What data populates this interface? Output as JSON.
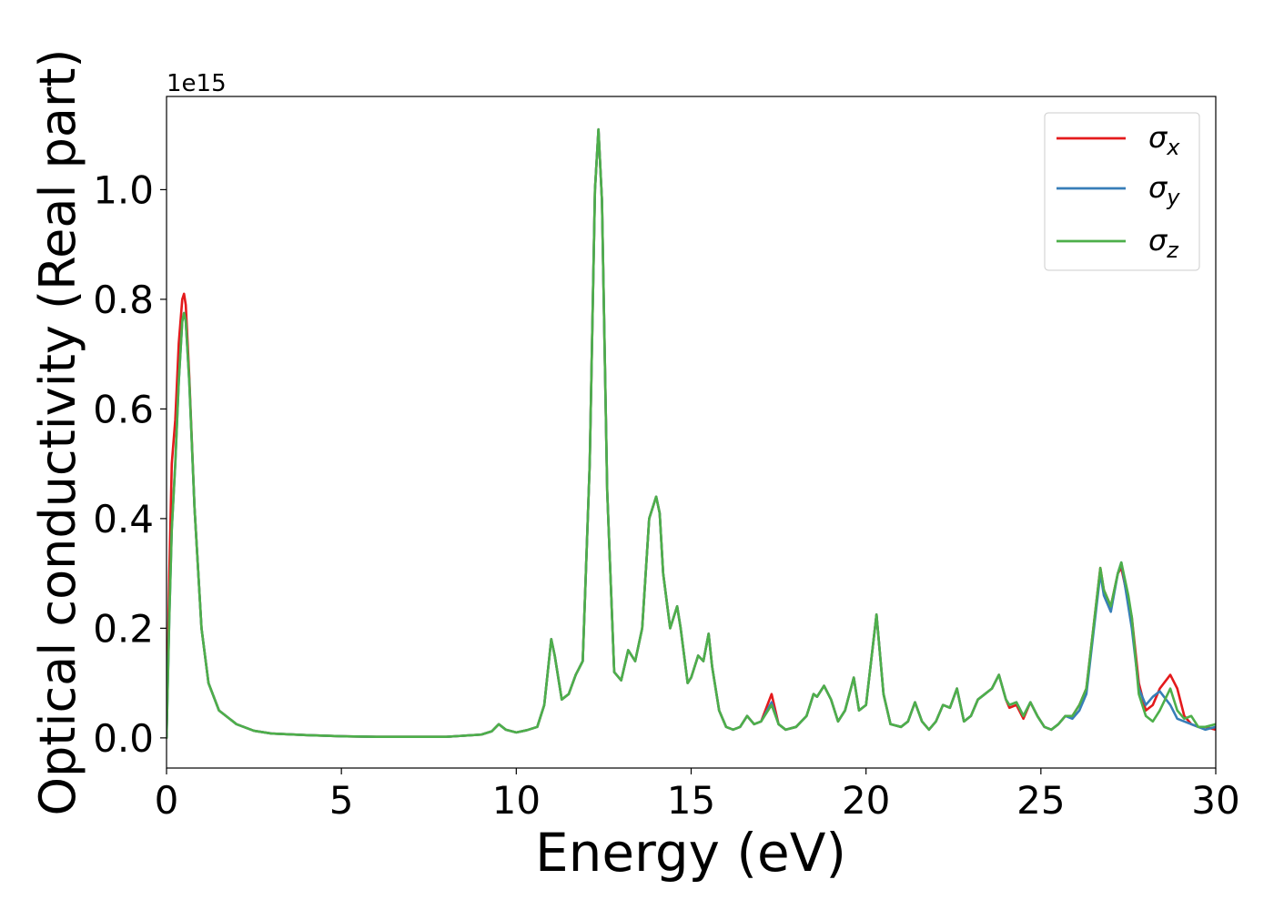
{
  "chart_data": {
    "type": "line",
    "title": "",
    "xlabel": "Energy (eV)",
    "ylabel": "Optical conductivity (Real part)",
    "xlim": [
      0,
      30
    ],
    "ylim": [
      -0.055,
      1.17
    ],
    "y_scale_multiplier": "1e15",
    "x_ticks": [
      0,
      5,
      10,
      15,
      20,
      25,
      30
    ],
    "y_ticks": [
      0.0,
      0.2,
      0.4,
      0.6,
      0.8,
      1.0
    ],
    "x_tick_labels": [
      "0",
      "5",
      "10",
      "15",
      "20",
      "25",
      "30"
    ],
    "y_tick_labels": [
      "0.0",
      "0.2",
      "0.4",
      "0.6",
      "0.8",
      "1.0"
    ],
    "grid": false,
    "legend": "top-right",
    "series": [
      {
        "name": "σ",
        "subscript": "x",
        "color": "#e41a1c",
        "x": [
          0.0,
          0.08,
          0.15,
          0.25,
          0.35,
          0.45,
          0.5,
          0.55,
          0.65,
          0.8,
          1.0,
          1.2,
          1.5,
          2.0,
          2.5,
          3.0,
          4.0,
          5.0,
          6.0,
          7.0,
          8.0,
          8.5,
          9.0,
          9.3,
          9.5,
          9.7,
          10.0,
          10.3,
          10.6,
          10.8,
          11.0,
          11.1,
          11.3,
          11.5,
          11.7,
          11.9,
          12.1,
          12.25,
          12.35,
          12.45,
          12.6,
          12.8,
          13.0,
          13.2,
          13.4,
          13.6,
          13.8,
          14.0,
          14.1,
          14.2,
          14.4,
          14.6,
          14.7,
          14.9,
          15.0,
          15.2,
          15.35,
          15.5,
          15.6,
          15.8,
          16.0,
          16.2,
          16.4,
          16.6,
          16.8,
          17.0,
          17.3,
          17.5,
          17.7,
          18.0,
          18.3,
          18.5,
          18.6,
          18.8,
          19.0,
          19.2,
          19.4,
          19.65,
          19.8,
          20.0,
          20.3,
          20.5,
          20.7,
          21.0,
          21.2,
          21.4,
          21.6,
          21.8,
          22.0,
          22.2,
          22.4,
          22.6,
          22.8,
          23.0,
          23.2,
          23.4,
          23.6,
          23.8,
          24.0,
          24.1,
          24.3,
          24.5,
          24.7,
          24.9,
          25.1,
          25.3,
          25.5,
          25.7,
          25.9,
          26.1,
          26.3,
          26.5,
          26.7,
          26.8,
          27.0,
          27.2,
          27.3,
          27.5,
          27.6,
          27.8,
          28.0,
          28.2,
          28.4,
          28.7,
          28.9,
          29.1,
          29.3,
          29.5,
          29.7,
          30.0
        ],
        "values": [
          0.0,
          0.3,
          0.5,
          0.58,
          0.72,
          0.8,
          0.81,
          0.79,
          0.66,
          0.42,
          0.2,
          0.1,
          0.05,
          0.025,
          0.013,
          0.008,
          0.005,
          0.003,
          0.002,
          0.002,
          0.002,
          0.004,
          0.006,
          0.012,
          0.025,
          0.015,
          0.01,
          0.014,
          0.02,
          0.06,
          0.18,
          0.15,
          0.07,
          0.08,
          0.115,
          0.14,
          0.5,
          1.0,
          1.11,
          0.98,
          0.45,
          0.12,
          0.105,
          0.16,
          0.14,
          0.2,
          0.4,
          0.44,
          0.41,
          0.3,
          0.2,
          0.24,
          0.2,
          0.1,
          0.11,
          0.15,
          0.14,
          0.19,
          0.13,
          0.05,
          0.02,
          0.015,
          0.02,
          0.04,
          0.025,
          0.03,
          0.08,
          0.025,
          0.015,
          0.02,
          0.04,
          0.08,
          0.075,
          0.095,
          0.07,
          0.03,
          0.05,
          0.11,
          0.05,
          0.06,
          0.225,
          0.08,
          0.025,
          0.02,
          0.03,
          0.065,
          0.03,
          0.015,
          0.03,
          0.06,
          0.055,
          0.09,
          0.03,
          0.04,
          0.07,
          0.08,
          0.09,
          0.115,
          0.07,
          0.055,
          0.06,
          0.035,
          0.065,
          0.04,
          0.02,
          0.015,
          0.025,
          0.04,
          0.04,
          0.06,
          0.09,
          0.2,
          0.31,
          0.27,
          0.24,
          0.3,
          0.31,
          0.25,
          0.22,
          0.1,
          0.05,
          0.06,
          0.09,
          0.115,
          0.09,
          0.04,
          0.025,
          0.02,
          0.02,
          0.015
        ]
      },
      {
        "name": "σ",
        "subscript": "y",
        "color": "#377eb8",
        "x": [
          0.0,
          0.08,
          0.15,
          0.25,
          0.35,
          0.45,
          0.5,
          0.55,
          0.65,
          0.8,
          1.0,
          1.2,
          1.5,
          2.0,
          2.5,
          3.0,
          4.0,
          5.0,
          6.0,
          7.0,
          8.0,
          8.5,
          9.0,
          9.3,
          9.5,
          9.7,
          10.0,
          10.3,
          10.6,
          10.8,
          11.0,
          11.1,
          11.3,
          11.5,
          11.7,
          11.9,
          12.1,
          12.25,
          12.35,
          12.45,
          12.6,
          12.8,
          13.0,
          13.2,
          13.4,
          13.6,
          13.8,
          14.0,
          14.1,
          14.2,
          14.4,
          14.6,
          14.7,
          14.9,
          15.0,
          15.2,
          15.35,
          15.5,
          15.6,
          15.8,
          16.0,
          16.2,
          16.4,
          16.6,
          16.8,
          17.0,
          17.3,
          17.5,
          17.7,
          18.0,
          18.3,
          18.5,
          18.6,
          18.8,
          19.0,
          19.2,
          19.4,
          19.65,
          19.8,
          20.0,
          20.3,
          20.5,
          20.7,
          21.0,
          21.2,
          21.4,
          21.6,
          21.8,
          22.0,
          22.2,
          22.4,
          22.6,
          22.8,
          23.0,
          23.2,
          23.4,
          23.6,
          23.8,
          24.0,
          24.1,
          24.3,
          24.5,
          24.7,
          24.9,
          25.1,
          25.3,
          25.5,
          25.7,
          25.9,
          26.1,
          26.3,
          26.5,
          26.7,
          26.8,
          27.0,
          27.2,
          27.3,
          27.5,
          27.6,
          27.8,
          28.0,
          28.2,
          28.4,
          28.7,
          28.9,
          29.1,
          29.3,
          29.5,
          29.7,
          30.0
        ],
        "values": [
          0.0,
          0.22,
          0.38,
          0.5,
          0.65,
          0.76,
          0.775,
          0.76,
          0.65,
          0.42,
          0.2,
          0.1,
          0.05,
          0.025,
          0.013,
          0.008,
          0.005,
          0.003,
          0.002,
          0.002,
          0.002,
          0.004,
          0.006,
          0.012,
          0.025,
          0.015,
          0.01,
          0.014,
          0.02,
          0.06,
          0.18,
          0.15,
          0.07,
          0.08,
          0.115,
          0.14,
          0.5,
          1.0,
          1.11,
          0.98,
          0.45,
          0.12,
          0.105,
          0.16,
          0.14,
          0.2,
          0.4,
          0.44,
          0.41,
          0.3,
          0.2,
          0.24,
          0.2,
          0.1,
          0.11,
          0.15,
          0.14,
          0.19,
          0.13,
          0.05,
          0.02,
          0.015,
          0.02,
          0.04,
          0.025,
          0.03,
          0.065,
          0.025,
          0.015,
          0.02,
          0.04,
          0.08,
          0.075,
          0.095,
          0.07,
          0.03,
          0.05,
          0.11,
          0.05,
          0.06,
          0.225,
          0.08,
          0.025,
          0.02,
          0.03,
          0.065,
          0.03,
          0.015,
          0.03,
          0.06,
          0.055,
          0.09,
          0.03,
          0.04,
          0.07,
          0.08,
          0.09,
          0.115,
          0.07,
          0.06,
          0.065,
          0.04,
          0.065,
          0.04,
          0.02,
          0.015,
          0.025,
          0.04,
          0.035,
          0.05,
          0.08,
          0.19,
          0.3,
          0.26,
          0.23,
          0.3,
          0.32,
          0.24,
          0.2,
          0.09,
          0.06,
          0.075,
          0.085,
          0.06,
          0.035,
          0.03,
          0.025,
          0.02,
          0.015,
          0.02
        ]
      },
      {
        "name": "σ",
        "subscript": "z",
        "color": "#4daf4a",
        "x": [
          0.0,
          0.08,
          0.15,
          0.25,
          0.35,
          0.45,
          0.5,
          0.55,
          0.65,
          0.8,
          1.0,
          1.2,
          1.5,
          2.0,
          2.5,
          3.0,
          4.0,
          5.0,
          6.0,
          7.0,
          8.0,
          8.5,
          9.0,
          9.3,
          9.5,
          9.7,
          10.0,
          10.3,
          10.6,
          10.8,
          11.0,
          11.1,
          11.3,
          11.5,
          11.7,
          11.9,
          12.1,
          12.25,
          12.35,
          12.45,
          12.6,
          12.8,
          13.0,
          13.2,
          13.4,
          13.6,
          13.8,
          14.0,
          14.1,
          14.2,
          14.4,
          14.6,
          14.7,
          14.9,
          15.0,
          15.2,
          15.35,
          15.5,
          15.6,
          15.8,
          16.0,
          16.2,
          16.4,
          16.6,
          16.8,
          17.0,
          17.3,
          17.5,
          17.7,
          18.0,
          18.3,
          18.5,
          18.6,
          18.8,
          19.0,
          19.2,
          19.4,
          19.65,
          19.8,
          20.0,
          20.3,
          20.5,
          20.7,
          21.0,
          21.2,
          21.4,
          21.6,
          21.8,
          22.0,
          22.2,
          22.4,
          22.6,
          22.8,
          23.0,
          23.2,
          23.4,
          23.6,
          23.8,
          24.0,
          24.1,
          24.3,
          24.5,
          24.7,
          24.9,
          25.1,
          25.3,
          25.5,
          25.7,
          25.9,
          26.1,
          26.3,
          26.5,
          26.7,
          26.8,
          27.0,
          27.2,
          27.3,
          27.5,
          27.6,
          27.8,
          28.0,
          28.2,
          28.4,
          28.7,
          28.9,
          29.1,
          29.3,
          29.5,
          29.7,
          30.0
        ],
        "values": [
          0.0,
          0.22,
          0.38,
          0.5,
          0.65,
          0.76,
          0.775,
          0.76,
          0.65,
          0.42,
          0.2,
          0.1,
          0.05,
          0.025,
          0.013,
          0.008,
          0.005,
          0.003,
          0.002,
          0.002,
          0.002,
          0.004,
          0.006,
          0.012,
          0.025,
          0.015,
          0.01,
          0.014,
          0.02,
          0.06,
          0.18,
          0.15,
          0.07,
          0.08,
          0.115,
          0.14,
          0.5,
          1.0,
          1.11,
          0.98,
          0.45,
          0.12,
          0.105,
          0.16,
          0.14,
          0.2,
          0.4,
          0.44,
          0.41,
          0.3,
          0.2,
          0.24,
          0.2,
          0.1,
          0.11,
          0.15,
          0.14,
          0.19,
          0.13,
          0.05,
          0.02,
          0.015,
          0.02,
          0.04,
          0.025,
          0.03,
          0.06,
          0.025,
          0.015,
          0.02,
          0.04,
          0.08,
          0.075,
          0.095,
          0.07,
          0.03,
          0.05,
          0.11,
          0.05,
          0.06,
          0.225,
          0.08,
          0.025,
          0.02,
          0.03,
          0.065,
          0.03,
          0.015,
          0.03,
          0.06,
          0.055,
          0.09,
          0.03,
          0.04,
          0.07,
          0.08,
          0.09,
          0.115,
          0.07,
          0.06,
          0.065,
          0.04,
          0.065,
          0.04,
          0.02,
          0.015,
          0.025,
          0.04,
          0.04,
          0.06,
          0.09,
          0.2,
          0.31,
          0.27,
          0.24,
          0.3,
          0.32,
          0.26,
          0.22,
          0.08,
          0.04,
          0.03,
          0.05,
          0.09,
          0.05,
          0.035,
          0.04,
          0.02,
          0.02,
          0.025
        ]
      }
    ]
  }
}
